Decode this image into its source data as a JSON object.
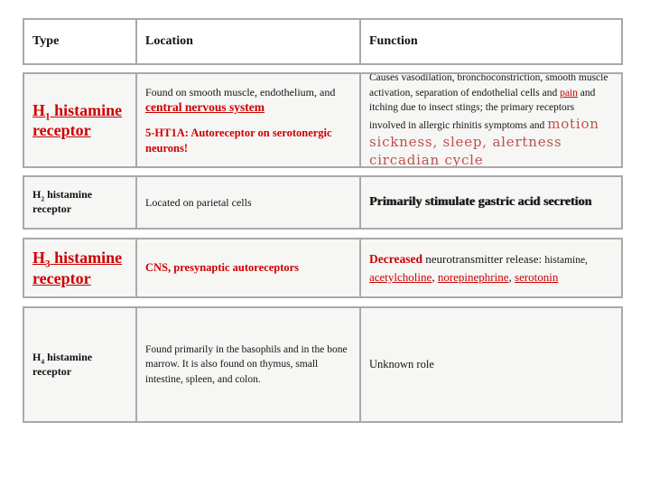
{
  "colors": {
    "accent_red": "#cc0000",
    "soft_red": "#c0504d",
    "cell_border": "#a9a9a9",
    "cell_background": "#f6f6f4"
  },
  "table": {
    "headers": {
      "type": "Type",
      "location": "Location",
      "function": "Function"
    },
    "rows": [
      {
        "type": {
          "h": "H",
          "sub": "1",
          "rest": " histamine receptor"
        },
        "location": {
          "p1_plain": "Found on smooth muscle, endothelium, and ",
          "p1_link": "central nervous system",
          "p2": "5-HT1A: Autoreceptor on serotonergic neurons!"
        },
        "function": {
          "s1": "Causes vasodilation, bronchoconstriction, smooth muscle activation, separation of endothelial cells and ",
          "link": "pain",
          "s2": " and itching due to insect stings; the primary receptors involved in allergic rhinitis symptoms and ",
          "big1": "motion sickness, sleep, alertness",
          "big2": "circadian cycle"
        }
      },
      {
        "type": {
          "h": "H",
          "sub": "2",
          "rest": " histamine receptor"
        },
        "location": {
          "text": "Located on parietal cells"
        },
        "function": {
          "text": "Primarily stimulate gastric acid secretion"
        }
      },
      {
        "type": {
          "h": "H",
          "sub": "3",
          "rest": " histamine receptor"
        },
        "location": {
          "text": "CNS, presynaptic autoreceptors"
        },
        "function": {
          "bold_red": "Decreased",
          "plain": " neurotransmitter release: ",
          "small": "histamine,",
          "link1": "acetylcholine",
          "comma1": ", ",
          "link2": "norepinephrine",
          "comma2": ", ",
          "link3": "serotonin"
        }
      },
      {
        "type": {
          "h": "H",
          "sub": "4",
          "rest": " histamine receptor"
        },
        "location": {
          "text": "Found primarily in the basophils and in the bone marrow. It is also found on thymus, small intestine, spleen, and colon."
        },
        "function": {
          "text": "Unknown role"
        }
      }
    ]
  }
}
